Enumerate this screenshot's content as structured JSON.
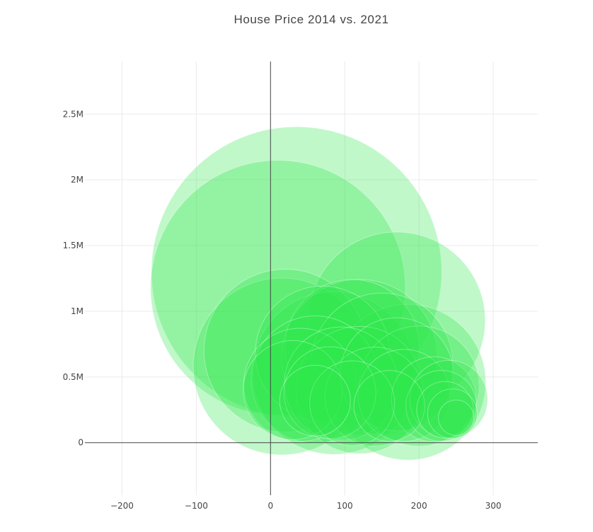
{
  "chart_data": {
    "type": "scatter",
    "title": "House Price 2014 vs. 2021",
    "xlabel": "",
    "ylabel": "",
    "xlim": [
      -250,
      360
    ],
    "ylim": [
      -400000,
      2900000
    ],
    "x_ticks": [
      -200,
      -100,
      0,
      100,
      200,
      300
    ],
    "x_tick_labels": [
      "−200",
      "−100",
      "0",
      "100",
      "200",
      "300"
    ],
    "y_ticks": [
      0,
      500000,
      1000000,
      1500000,
      2000000,
      2500000
    ],
    "y_tick_labels": [
      "0",
      "0.5M",
      "1M",
      "1.5M",
      "2M",
      "2.5M"
    ],
    "grid": true,
    "marker_color": "#2ee84d",
    "marker_opacity": 0.3,
    "points": [
      {
        "x": 35,
        "y": 1300000,
        "r": 205
      },
      {
        "x": 10,
        "y": 1180000,
        "r": 180
      },
      {
        "x": 170,
        "y": 930000,
        "r": 125
      },
      {
        "x": 15,
        "y": 580000,
        "r": 125
      },
      {
        "x": 85,
        "y": 530000,
        "r": 115
      },
      {
        "x": 20,
        "y": 700000,
        "r": 115
      },
      {
        "x": 185,
        "y": 460000,
        "r": 110
      },
      {
        "x": 120,
        "y": 650000,
        "r": 110
      },
      {
        "x": 110,
        "y": 730000,
        "r": 95
      },
      {
        "x": 70,
        "y": 680000,
        "r": 95
      },
      {
        "x": 150,
        "y": 600000,
        "r": 100
      },
      {
        "x": 60,
        "y": 480000,
        "r": 90
      },
      {
        "x": 120,
        "y": 400000,
        "r": 90
      },
      {
        "x": 200,
        "y": 430000,
        "r": 85
      },
      {
        "x": 40,
        "y": 440000,
        "r": 80
      },
      {
        "x": 95,
        "y": 450000,
        "r": 80
      },
      {
        "x": 170,
        "y": 520000,
        "r": 80
      },
      {
        "x": 30,
        "y": 400000,
        "r": 70
      },
      {
        "x": 140,
        "y": 350000,
        "r": 70
      },
      {
        "x": 180,
        "y": 360000,
        "r": 65
      },
      {
        "x": 80,
        "y": 380000,
        "r": 65
      },
      {
        "x": 220,
        "y": 330000,
        "r": 60
      },
      {
        "x": 110,
        "y": 300000,
        "r": 60
      },
      {
        "x": 240,
        "y": 330000,
        "r": 55
      },
      {
        "x": 230,
        "y": 280000,
        "r": 50
      },
      {
        "x": 160,
        "y": 280000,
        "r": 50
      },
      {
        "x": 60,
        "y": 320000,
        "r": 50
      },
      {
        "x": 235,
        "y": 250000,
        "r": 40
      },
      {
        "x": 245,
        "y": 220000,
        "r": 35
      },
      {
        "x": 250,
        "y": 190000,
        "r": 25
      }
    ]
  }
}
